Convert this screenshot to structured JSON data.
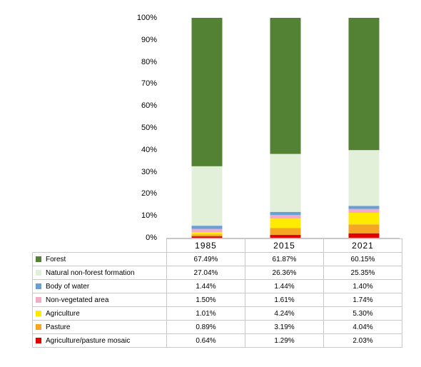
{
  "chart_data": {
    "type": "bar",
    "stacked": true,
    "percent": true,
    "categories": [
      "1985",
      "2015",
      "2021"
    ],
    "ylim": [
      0,
      100
    ],
    "yticks": [
      "0%",
      "10%",
      "20%",
      "30%",
      "40%",
      "50%",
      "60%",
      "70%",
      "80%",
      "90%",
      "100%"
    ],
    "grid": false,
    "legend": "data-table",
    "series": [
      {
        "name": "Agriculture/pasture mosaic",
        "color": "#e00000",
        "values": [
          0.64,
          1.29,
          2.03
        ],
        "labels": [
          "0.64%",
          "1.29%",
          "2.03%"
        ]
      },
      {
        "name": "Pasture",
        "color": "#f5a623",
        "values": [
          0.89,
          3.19,
          4.04
        ],
        "labels": [
          "0.89%",
          "3.19%",
          "4.04%"
        ]
      },
      {
        "name": "Agriculture",
        "color": "#ffeb00",
        "values": [
          1.01,
          4.24,
          5.3
        ],
        "labels": [
          "1.01%",
          "4.24%",
          "5.30%"
        ]
      },
      {
        "name": "Non-vegetated area",
        "color": "#f2aac8",
        "values": [
          1.5,
          1.61,
          1.74
        ],
        "labels": [
          "1.50%",
          "1.61%",
          "1.74%"
        ]
      },
      {
        "name": "Body of water",
        "color": "#6a9fd4",
        "values": [
          1.44,
          1.44,
          1.4
        ],
        "labels": [
          "1.44%",
          "1.44%",
          "1.40%"
        ]
      },
      {
        "name": "Natural non-forest formation",
        "color": "#e2efd9",
        "values": [
          27.04,
          26.36,
          25.35
        ],
        "labels": [
          "27.04%",
          "26.36%",
          "25.35%"
        ]
      },
      {
        "name": "Forest",
        "color": "#548235",
        "values": [
          67.49,
          61.87,
          60.15
        ],
        "labels": [
          "67.49%",
          "61.87%",
          "60.15%"
        ]
      }
    ]
  }
}
